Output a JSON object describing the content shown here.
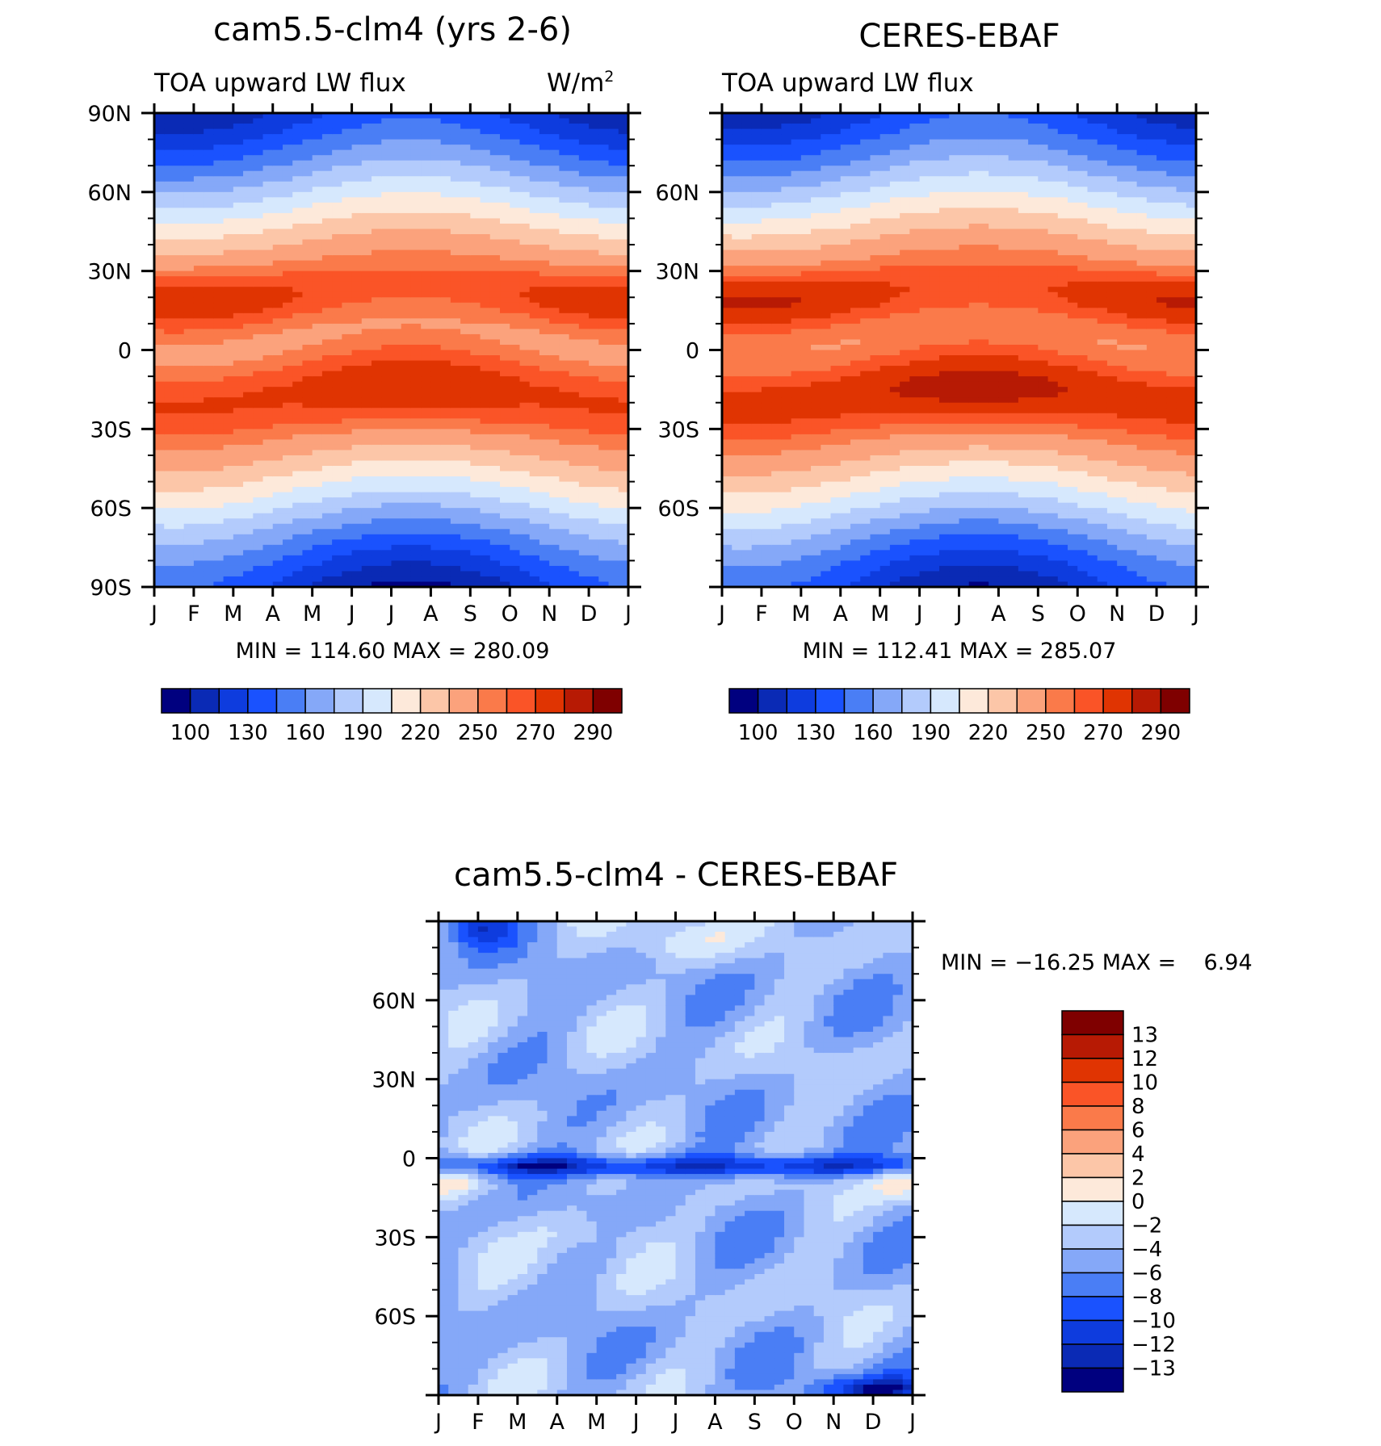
{
  "palette": [
    "#00007f",
    "#0a2ab5",
    "#0e3cde",
    "#1a52fe",
    "#4a7ef5",
    "#85a8f8",
    "#b3cbfc",
    "#d6e8fd",
    "#fde9da",
    "#fcc6a8",
    "#fba27c",
    "#fa7a4a",
    "#fa5427",
    "#e03402",
    "#b71a04",
    "#7f0000"
  ],
  "diff_palette": [
    "#00007f",
    "#0a2ab5",
    "#0e3cde",
    "#1a52fe",
    "#4a7ef5",
    "#85a8f8",
    "#b3cbfc",
    "#d6e8fd",
    "#fde9da",
    "#fcc6a8",
    "#fba27c",
    "#fa7a4a",
    "#fa5427",
    "#e03402",
    "#b71a04",
    "#7f0000"
  ],
  "chart_data": [
    {
      "type": "heatmap",
      "title": "cam5.5-clm4 (yrs 2-6)",
      "left_label": "TOA upward LW flux",
      "right_label": "W/m",
      "units_superscript": "2",
      "x_ticks": [
        "J",
        "F",
        "M",
        "A",
        "M",
        "J",
        "J",
        "A",
        "S",
        "O",
        "N",
        "D",
        "J"
      ],
      "y_ticks": [
        "90N",
        "60N",
        "30N",
        "0",
        "30S",
        "60S",
        "90S"
      ],
      "ylim": [
        -90,
        90
      ],
      "stats": "MIN = 114.60 MAX = 280.09",
      "min": 114.6,
      "max": 280.09,
      "levels": [
        100,
        115,
        130,
        145,
        160,
        175,
        190,
        205,
        220,
        235,
        250,
        260,
        270,
        280,
        290
      ],
      "colorbar_labels": [
        "100",
        "130",
        "160",
        "190",
        "220",
        "250",
        "270",
        "290"
      ]
    },
    {
      "type": "heatmap",
      "title": "CERES-EBAF",
      "left_label": "TOA upward LW flux",
      "x_ticks": [
        "J",
        "F",
        "M",
        "A",
        "M",
        "J",
        "J",
        "A",
        "S",
        "O",
        "N",
        "D",
        "J"
      ],
      "y_ticks": [
        "60N",
        "30N",
        "0",
        "30S",
        "60S"
      ],
      "ylim": [
        -90,
        90
      ],
      "stats": "MIN = 112.41 MAX = 285.07",
      "min": 112.41,
      "max": 285.07,
      "levels": [
        100,
        115,
        130,
        145,
        160,
        175,
        190,
        205,
        220,
        235,
        250,
        260,
        270,
        280,
        290
      ],
      "colorbar_labels": [
        "100",
        "130",
        "160",
        "190",
        "220",
        "250",
        "270",
        "290"
      ]
    },
    {
      "type": "heatmap",
      "title": "cam5.5-clm4 - CERES-EBAF",
      "x_ticks": [
        "J",
        "F",
        "M",
        "A",
        "M",
        "J",
        "J",
        "A",
        "S",
        "O",
        "N",
        "D",
        "J"
      ],
      "y_ticks": [
        "60N",
        "30N",
        "0",
        "30S",
        "60S"
      ],
      "ylim": [
        -90,
        90
      ],
      "stats": "MIN = −16.25 MAX =    6.94",
      "min": -16.25,
      "max": 6.94,
      "levels": [
        -13,
        -12,
        -10,
        -8,
        -6,
        -4,
        -2,
        0,
        2,
        4,
        6,
        8,
        10,
        12,
        13
      ],
      "colorbar_labels": [
        "13",
        "12",
        "10",
        "8",
        "6",
        "4",
        "2",
        "0",
        "−2",
        "−4",
        "−6",
        "−8",
        "−10",
        "−12",
        "−13"
      ]
    }
  ]
}
